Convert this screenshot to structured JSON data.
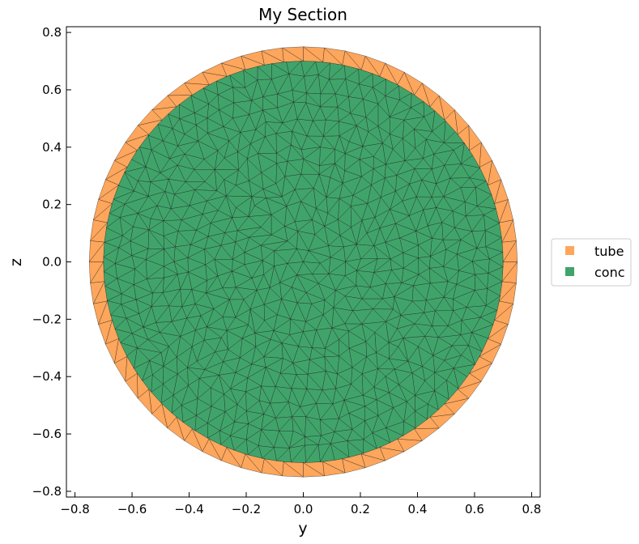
{
  "chart_data": {
    "type": "section_mesh",
    "title": "My Section",
    "xlabel": "y",
    "ylabel": "z",
    "xlim": [
      -0.83,
      0.83
    ],
    "ylim": [
      -0.82,
      0.82
    ],
    "xticks": [
      -0.8,
      -0.6,
      -0.4,
      -0.2,
      0.0,
      0.2,
      0.4,
      0.6,
      0.8
    ],
    "yticks": [
      -0.8,
      -0.6,
      -0.4,
      -0.2,
      0.0,
      0.2,
      0.4,
      0.6,
      0.8
    ],
    "xtick_labels": [
      "−0.8",
      "−0.6",
      "−0.4",
      "−0.2",
      "0.0",
      "0.2",
      "0.4",
      "0.6",
      "0.8"
    ],
    "ytick_labels": [
      "−0.8",
      "−0.6",
      "−0.4",
      "−0.2",
      "0.0",
      "0.2",
      "0.4",
      "0.6",
      "0.8"
    ],
    "grid": false,
    "legend_position": "center-right-outside",
    "regions": [
      {
        "name": "tube",
        "shape": "annulus",
        "outer_radius": 0.75,
        "inner_radius": 0.7,
        "color": "#fda65c"
      },
      {
        "name": "conc",
        "shape": "disk",
        "radius": 0.7,
        "color": "#40a46a"
      }
    ],
    "legend": [
      {
        "label": "tube",
        "color": "#fda65c"
      },
      {
        "label": "conc",
        "color": "#40a46a"
      }
    ]
  }
}
